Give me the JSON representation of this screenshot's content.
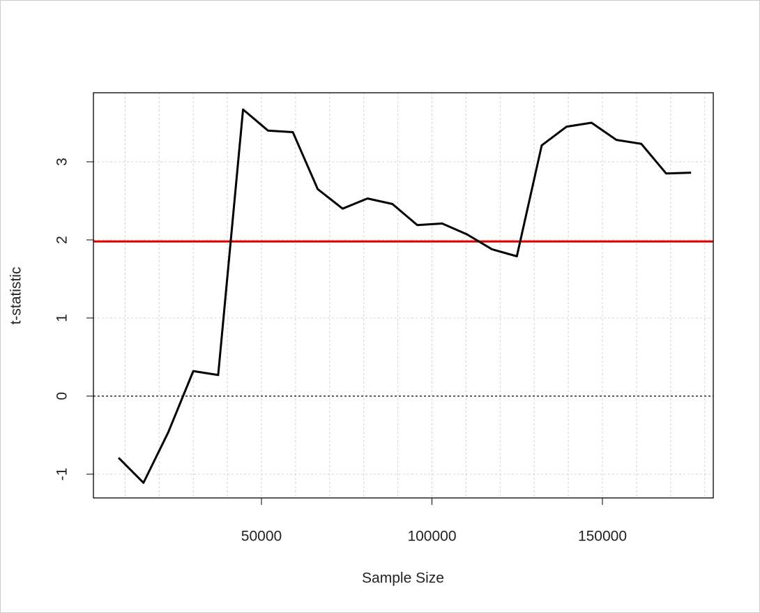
{
  "chart_data": {
    "type": "line",
    "xlabel": "Sample Size",
    "ylabel": "t-statistic",
    "x": [
      8100,
      15400,
      22700,
      30000,
      37300,
      44600,
      51900,
      59200,
      66500,
      73800,
      81100,
      88400,
      95700,
      103000,
      110300,
      117600,
      124900,
      132200,
      139500,
      146800,
      154100,
      161400,
      168700,
      176000
    ],
    "series": [
      {
        "color": "#000000",
        "values": [
          -0.79,
          -1.11,
          -0.46,
          0.32,
          0.27,
          3.67,
          3.4,
          3.38,
          2.65,
          2.4,
          2.53,
          2.46,
          2.19,
          2.21,
          2.07,
          1.88,
          1.79,
          3.21,
          3.45,
          3.5,
          3.28,
          3.23,
          2.85,
          2.86
        ]
      }
    ],
    "xlim": [
      716,
      182515
    ],
    "ylim": [
      -1.304,
      3.884
    ],
    "xticks": [
      50000,
      100000,
      150000
    ],
    "yticks": [
      -1,
      0,
      1,
      2,
      3
    ],
    "xgrid": [
      10000,
      20000,
      30000,
      40000,
      50000,
      60000,
      70000,
      80000,
      90000,
      100000,
      110000,
      120000,
      130000,
      140000,
      150000,
      160000,
      170000,
      180000
    ],
    "grid": true,
    "hlines": [
      {
        "value": 1.98,
        "color": "#e00000",
        "style": "solid"
      },
      {
        "value": 0,
        "color": "#000000",
        "style": "dotted"
      }
    ]
  }
}
